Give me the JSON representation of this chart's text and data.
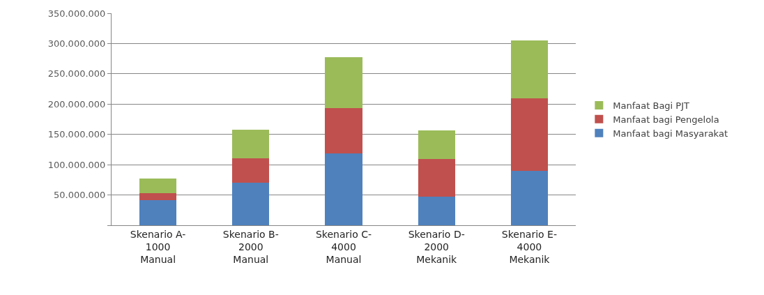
{
  "chart_data": {
    "type": "bar",
    "stacked": true,
    "categories": [
      "Skenario A-\n1000\nManual",
      "Skenario B-\n2000\nManual",
      "Skenario C-\n4000\nManual",
      "Skenario D-\n2000\nMekanik",
      "Skenario E-\n4000\nMekanik"
    ],
    "series": [
      {
        "name": "Manfaat bagi Masyarakat",
        "color": "#4f81bd",
        "values": [
          42000000,
          70000000,
          119000000,
          47000000,
          90000000
        ]
      },
      {
        "name": "Manfaat bagi Pengelola",
        "color": "#c0504d",
        "values": [
          11000000,
          40000000,
          74000000,
          62000000,
          120000000
        ]
      },
      {
        "name": "Manfaat Bagi PJT",
        "color": "#9bbb59",
        "values": [
          24000000,
          48000000,
          85000000,
          48000000,
          95000000
        ]
      }
    ],
    "ylim": [
      0,
      350000000
    ],
    "yticks": [
      {
        "value": 0,
        "label": null
      },
      {
        "value": 50000000,
        "label": "50.000.000"
      },
      {
        "value": 100000000,
        "label": "100.000.000"
      },
      {
        "value": 150000000,
        "label": "150.000.000"
      },
      {
        "value": 200000000,
        "label": "200.000.000"
      },
      {
        "value": 250000000,
        "label": "250.000.000"
      },
      {
        "value": 300000000,
        "label": "300.000.000"
      },
      {
        "value": 350000000,
        "label": "350.000.000"
      }
    ],
    "grid": "y",
    "legend": "right"
  }
}
